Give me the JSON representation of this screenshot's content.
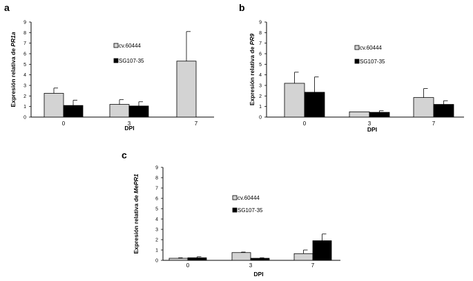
{
  "chart_data": [
    {
      "panel": "a",
      "type": "bar",
      "categories": [
        "0",
        "3",
        "7"
      ],
      "xlabel": "DPI",
      "ylabel_prefix": "Expresión relativa de ",
      "ylabel_gene": "PR1a",
      "ylim": [
        0,
        9
      ],
      "yticks": [
        0,
        1,
        2,
        3,
        4,
        5,
        6,
        7,
        8,
        9
      ],
      "series": [
        {
          "name": "cv.60444",
          "color": "#d3d3d3",
          "values": [
            2.25,
            1.2,
            5.3
          ],
          "errors": [
            0.5,
            0.45,
            2.8
          ]
        },
        {
          "name": "SG107-35",
          "color": "#000000",
          "values": [
            1.1,
            1.05,
            0.0
          ],
          "errors": [
            0.5,
            0.4,
            0.0
          ]
        }
      ]
    },
    {
      "panel": "b",
      "type": "bar",
      "categories": [
        "0",
        "3",
        "7"
      ],
      "xlabel": "DPI",
      "ylabel_prefix": "Expresión relativa de ",
      "ylabel_gene": "PR9",
      "ylim": [
        0,
        9
      ],
      "yticks": [
        0,
        1,
        2,
        3,
        4,
        5,
        6,
        7,
        8,
        9
      ],
      "series": [
        {
          "name": "cv.60444",
          "color": "#d3d3d3",
          "values": [
            3.2,
            0.5,
            1.85
          ],
          "errors": [
            1.05,
            0.0,
            0.85
          ]
        },
        {
          "name": "SG107-35",
          "color": "#000000",
          "values": [
            2.35,
            0.45,
            1.2
          ],
          "errors": [
            1.45,
            0.15,
            0.35
          ]
        }
      ]
    },
    {
      "panel": "c",
      "type": "bar",
      "categories": [
        "0",
        "3",
        "7"
      ],
      "xlabel": "DPI",
      "ylabel_prefix": "Expresión relativa de ",
      "ylabel_gene": "MePR1",
      "ylim": [
        0,
        9
      ],
      "yticks": [
        0,
        1,
        2,
        3,
        4,
        5,
        6,
        7,
        8,
        9
      ],
      "series": [
        {
          "name": "cv.60444",
          "color": "#d3d3d3",
          "values": [
            0.2,
            0.75,
            0.65
          ],
          "errors": [
            0.05,
            0.05,
            0.35
          ]
        },
        {
          "name": "SG107-35",
          "color": "#000000",
          "values": [
            0.25,
            0.2,
            1.9
          ],
          "errors": [
            0.1,
            0.05,
            0.65
          ]
        }
      ]
    }
  ]
}
